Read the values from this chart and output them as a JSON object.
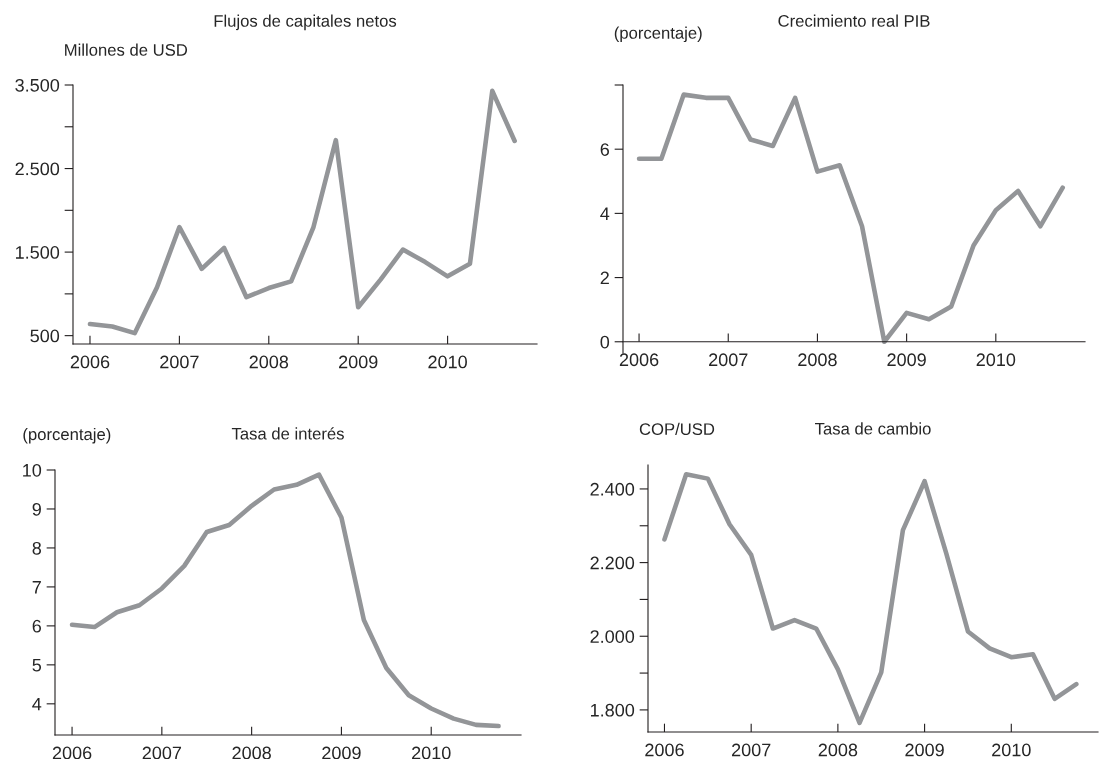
{
  "chart_data": [
    {
      "type": "line",
      "title": "Flujos de capitales netos",
      "ylabel": "Millones de USD",
      "x": [
        2006,
        2006.25,
        2006.5,
        2006.75,
        2007,
        2007.25,
        2007.5,
        2007.75,
        2008,
        2008.25,
        2008.5,
        2008.75,
        2009,
        2009.25,
        2009.5,
        2009.75,
        2010,
        2010.25,
        2010.5,
        2010.75
      ],
      "series": [
        {
          "color": "#939598",
          "values": [
            640,
            610,
            530,
            1080,
            1800,
            1300,
            1550,
            960,
            1070,
            1150,
            1800,
            2840,
            840,
            1170,
            1530,
            1380,
            1210,
            1360,
            3430,
            2830
          ]
        }
      ],
      "xlim": [
        2005.81,
        2011
      ],
      "xticks": [
        2006,
        2007,
        2008,
        2009,
        2010
      ],
      "ylim": [
        400,
        3500
      ],
      "yticks": [
        {
          "value": 500,
          "label": "500"
        },
        {
          "value": 1000,
          "label": null
        },
        {
          "value": 1500,
          "label": "1.500"
        },
        {
          "value": 2000,
          "label": null
        },
        {
          "value": 2500,
          "label": "2.500"
        },
        {
          "value": 3000,
          "label": null
        },
        {
          "value": 3500,
          "label": "3.500"
        }
      ],
      "grid": false,
      "marker": "none",
      "line_style": "solid"
    },
    {
      "type": "line",
      "title": "Crecimiento real PIB",
      "ylabel": "(porcentaje)",
      "x": [
        2006,
        2006.25,
        2006.5,
        2006.75,
        2007,
        2007.25,
        2007.5,
        2007.75,
        2008,
        2008.25,
        2008.5,
        2008.75,
        2009,
        2009.25,
        2009.5,
        2009.75,
        2010,
        2010.25,
        2010.5,
        2010.75
      ],
      "series": [
        {
          "color": "#939598",
          "values": [
            5.7,
            5.7,
            7.7,
            7.6,
            7.6,
            6.3,
            6.1,
            7.6,
            5.3,
            5.5,
            3.6,
            0.0,
            0.9,
            0.7,
            1.1,
            3.0,
            4.1,
            4.7,
            3.6,
            4.8
          ]
        }
      ],
      "xlim": [
        2005.82,
        2011
      ],
      "xticks": [
        2006,
        2007,
        2008,
        2009,
        2010
      ],
      "ylim": [
        -0.35,
        8
      ],
      "yticks": [
        0,
        2,
        4,
        6,
        {
          "value": 8,
          "label": null
        }
      ],
      "grid": false,
      "marker": "none",
      "line_style": "solid"
    },
    {
      "type": "line",
      "title": "Tasa de interés",
      "ylabel": "(porcentaje)",
      "x": [
        2006,
        2006.25,
        2006.5,
        2006.75,
        2007,
        2007.25,
        2007.5,
        2007.75,
        2008,
        2008.25,
        2008.5,
        2008.75,
        2009,
        2009.25,
        2009.5,
        2009.75,
        2010,
        2010.25,
        2010.5,
        2010.75
      ],
      "series": [
        {
          "color": "#939598",
          "values": [
            6.03,
            5.97,
            6.35,
            6.53,
            6.96,
            7.54,
            8.41,
            8.59,
            9.08,
            9.5,
            9.62,
            9.88,
            8.78,
            6.15,
            4.92,
            4.22,
            3.88,
            3.62,
            3.46,
            3.43
          ]
        }
      ],
      "xlim": [
        2005.81,
        2011
      ],
      "xticks": [
        2006,
        2007,
        2008,
        2009,
        2010
      ],
      "ylim": [
        3.2,
        10
      ],
      "yticks": [
        4,
        5,
        6,
        7,
        8,
        9,
        10
      ],
      "grid": false,
      "marker": "none",
      "line_style": "solid"
    },
    {
      "type": "line",
      "title": "Tasa de cambio",
      "ylabel": "COP/USD",
      "x": [
        2006,
        2006.25,
        2006.5,
        2006.75,
        2007,
        2007.25,
        2007.5,
        2007.75,
        2008,
        2008.25,
        2008.5,
        2008.75,
        2009,
        2009.25,
        2009.5,
        2009.75,
        2010,
        2010.25,
        2010.5,
        2010.75
      ],
      "series": [
        {
          "color": "#939598",
          "values": [
            2263,
            2440,
            2428,
            2304,
            2221,
            2021,
            2044,
            2021,
            1910,
            1765,
            1902,
            2288,
            2421,
            2225,
            2013,
            1967,
            1943,
            1951,
            1830,
            1870
          ]
        }
      ],
      "xlim": [
        2005.81,
        2011
      ],
      "xticks": [
        2006,
        2007,
        2008,
        2009,
        2010
      ],
      "ylim": [
        1740,
        2465
      ],
      "yticks": [
        {
          "value": 1800,
          "label": "1.800"
        },
        {
          "value": 1900,
          "label": null
        },
        {
          "value": 2000,
          "label": "2.000"
        },
        {
          "value": 2100,
          "label": null
        },
        {
          "value": 2200,
          "label": "2.200"
        },
        {
          "value": 2300,
          "label": null
        },
        {
          "value": 2400,
          "label": "2.400"
        }
      ],
      "grid": false,
      "marker": "none",
      "line_style": "solid"
    }
  ]
}
